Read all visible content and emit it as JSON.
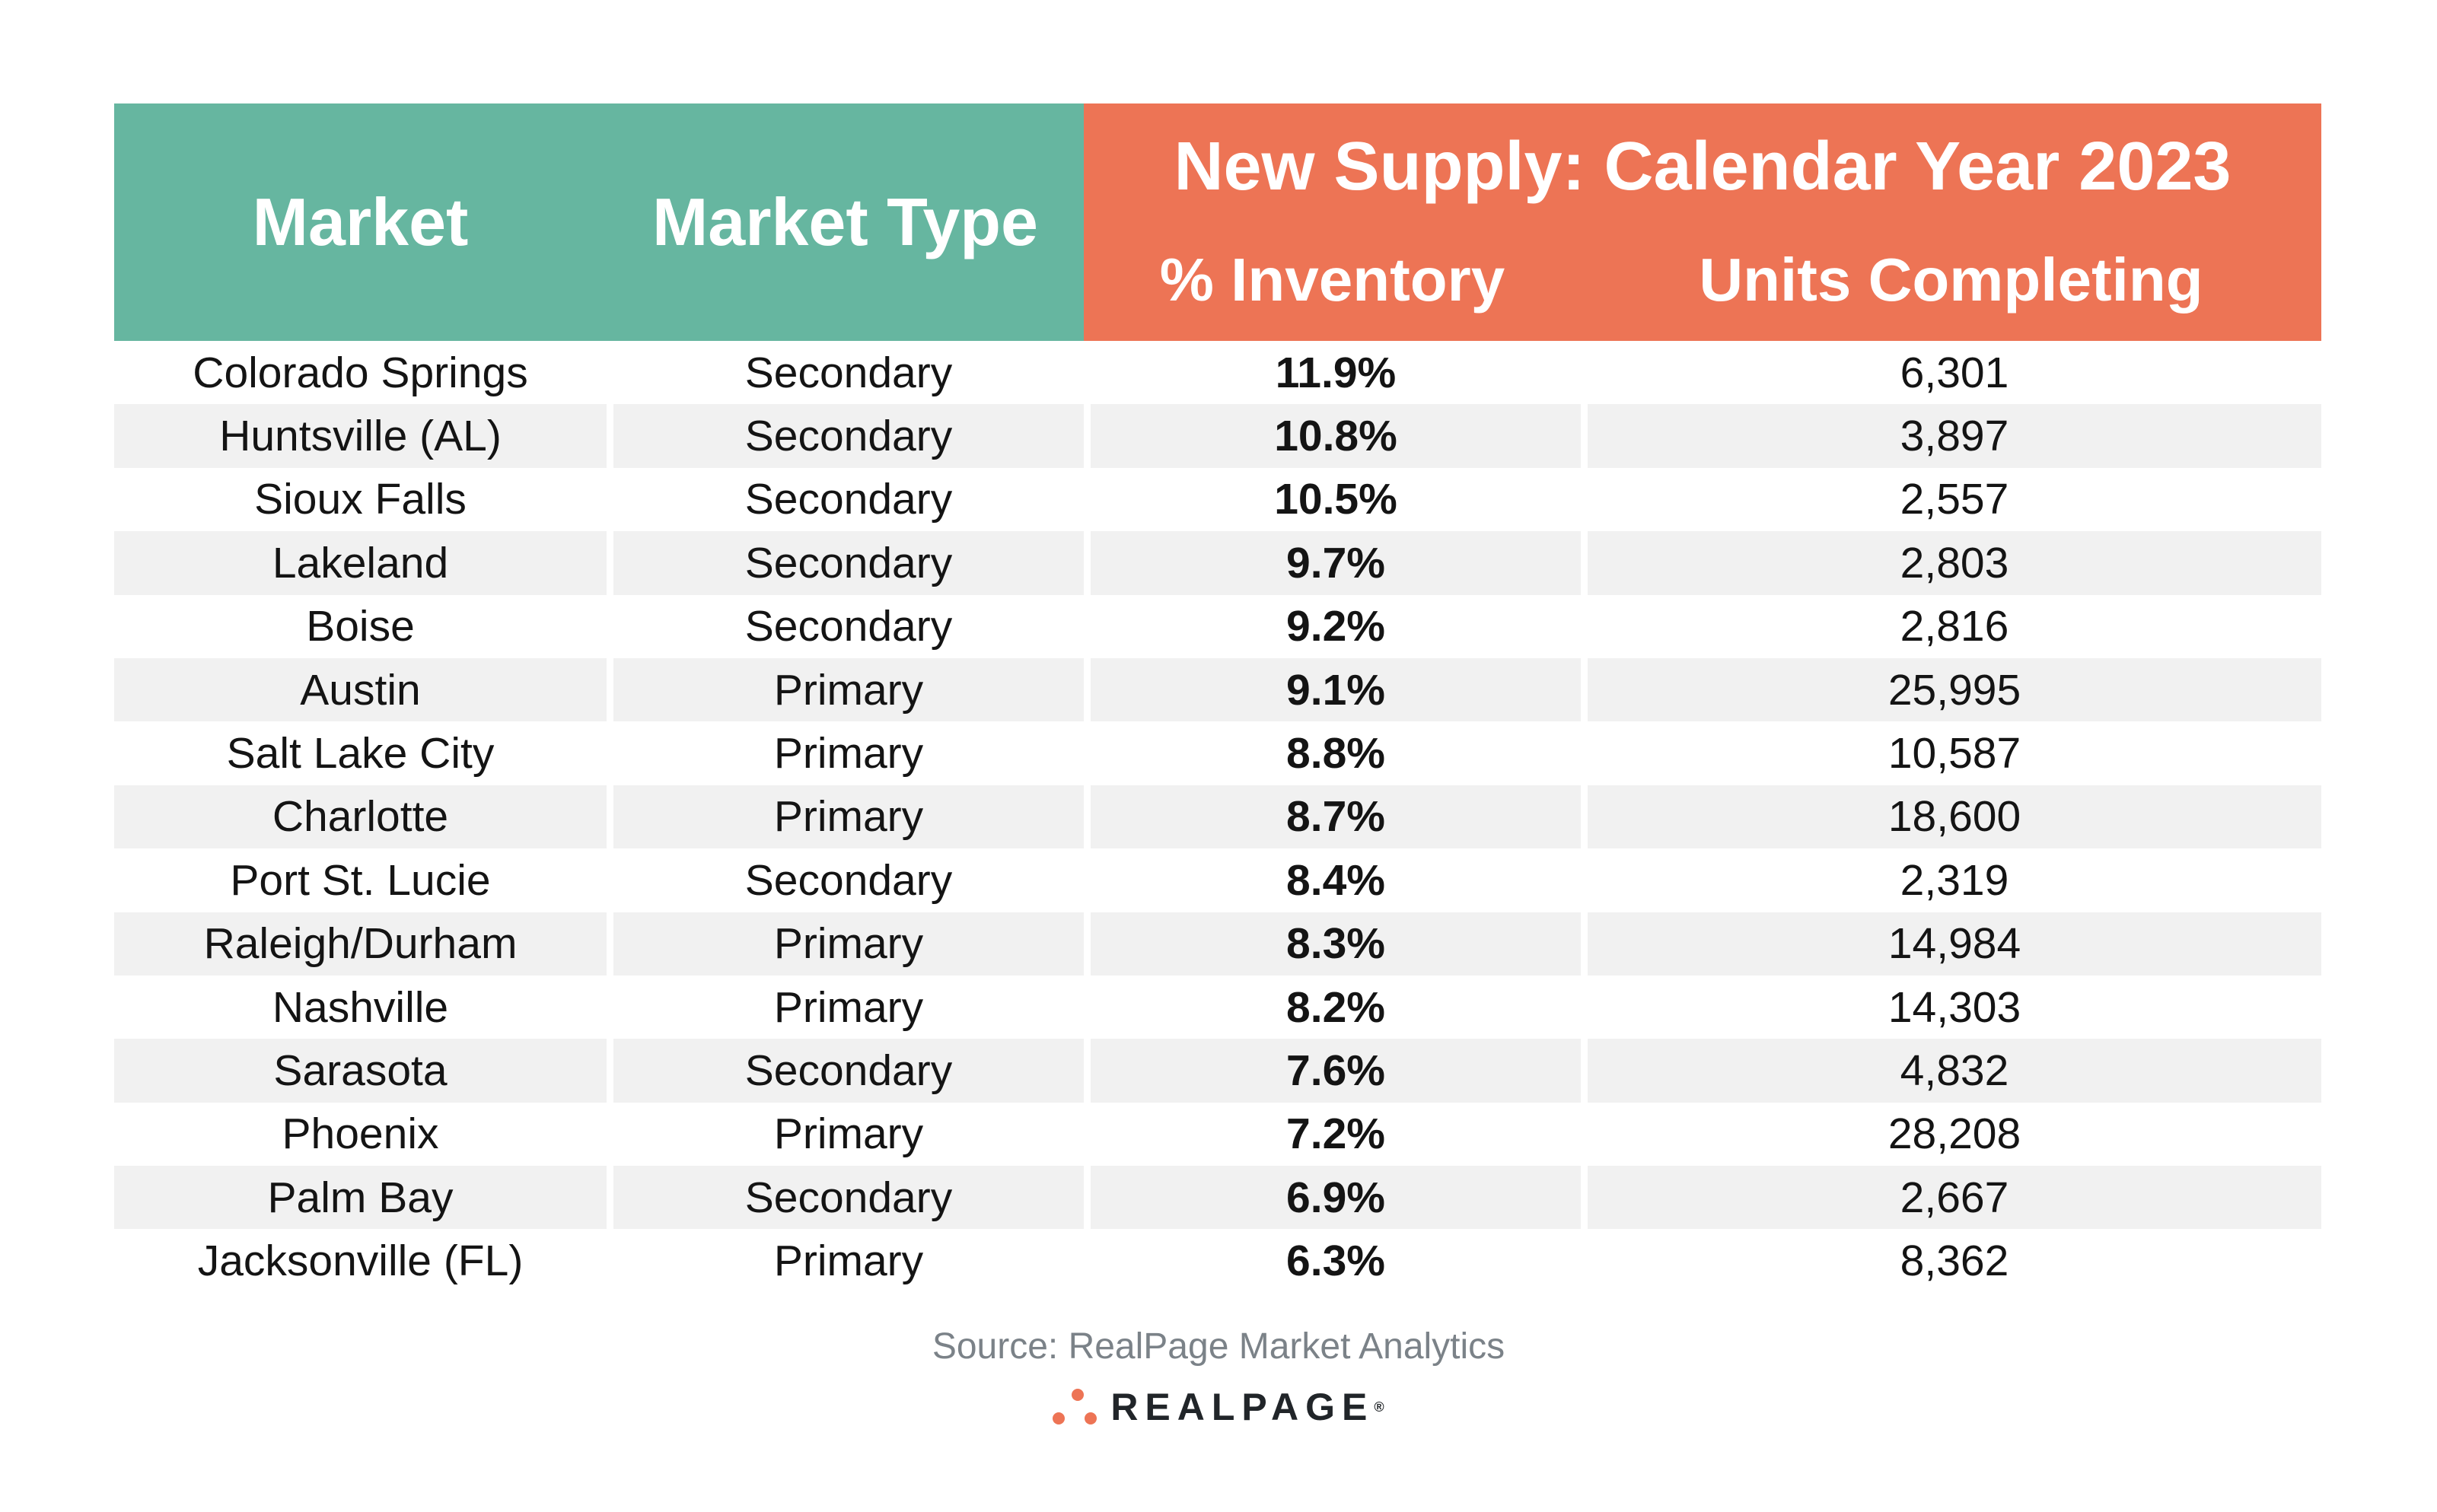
{
  "header": {
    "market_label": "Market",
    "market_type_label": "Market Type",
    "supply_title": "New Supply: Calendar Year 2023",
    "pct_inventory_label": "% Inventory",
    "units_completing_label": "Units Completing"
  },
  "chart_data": {
    "type": "table",
    "title": "New Supply: Calendar Year 2023",
    "columns": [
      "Market",
      "Market Type",
      "% Inventory",
      "Units Completing"
    ],
    "rows": [
      [
        "Colorado Springs",
        "Secondary",
        "11.9%",
        "6,301"
      ],
      [
        "Huntsville (AL)",
        "Secondary",
        "10.8%",
        "3,897"
      ],
      [
        "Sioux Falls",
        "Secondary",
        "10.5%",
        "2,557"
      ],
      [
        "Lakeland",
        "Secondary",
        "9.7%",
        "2,803"
      ],
      [
        "Boise",
        "Secondary",
        "9.2%",
        "2,816"
      ],
      [
        "Austin",
        "Primary",
        "9.1%",
        "25,995"
      ],
      [
        "Salt Lake City",
        "Primary",
        "8.8%",
        "10,587"
      ],
      [
        "Charlotte",
        "Primary",
        "8.7%",
        "18,600"
      ],
      [
        "Port St. Lucie",
        "Secondary",
        "8.4%",
        "2,319"
      ],
      [
        "Raleigh/Durham",
        "Primary",
        "8.3%",
        "14,984"
      ],
      [
        "Nashville",
        "Primary",
        "8.2%",
        "14,303"
      ],
      [
        "Sarasota",
        "Secondary",
        "7.6%",
        "4,832"
      ],
      [
        "Phoenix",
        "Primary",
        "7.2%",
        "28,208"
      ],
      [
        "Palm Bay",
        "Secondary",
        "6.9%",
        "2,667"
      ],
      [
        "Jacksonville (FL)",
        "Primary",
        "6.3%",
        "8,362"
      ]
    ],
    "pct_inventory_values": [
      11.9,
      10.8,
      10.5,
      9.7,
      9.2,
      9.1,
      8.8,
      8.7,
      8.4,
      8.3,
      8.2,
      7.6,
      7.2,
      6.9,
      6.3
    ],
    "units_completing_values": [
      6301,
      3897,
      2557,
      2803,
      2816,
      25995,
      10587,
      18600,
      2319,
      14984,
      14303,
      4832,
      28208,
      2667,
      8362
    ],
    "legend_position": "none",
    "grid": false
  },
  "footer": {
    "source": "Source: RealPage Market Analytics",
    "logo_text": "REALPAGE",
    "registered_mark": "®"
  },
  "colors": {
    "header_green": "#66b6a0",
    "header_orange": "#ed7455",
    "stripe_gray": "#f1f1f1",
    "logo_orange": "#ed7455",
    "source_gray": "#7b8288"
  }
}
